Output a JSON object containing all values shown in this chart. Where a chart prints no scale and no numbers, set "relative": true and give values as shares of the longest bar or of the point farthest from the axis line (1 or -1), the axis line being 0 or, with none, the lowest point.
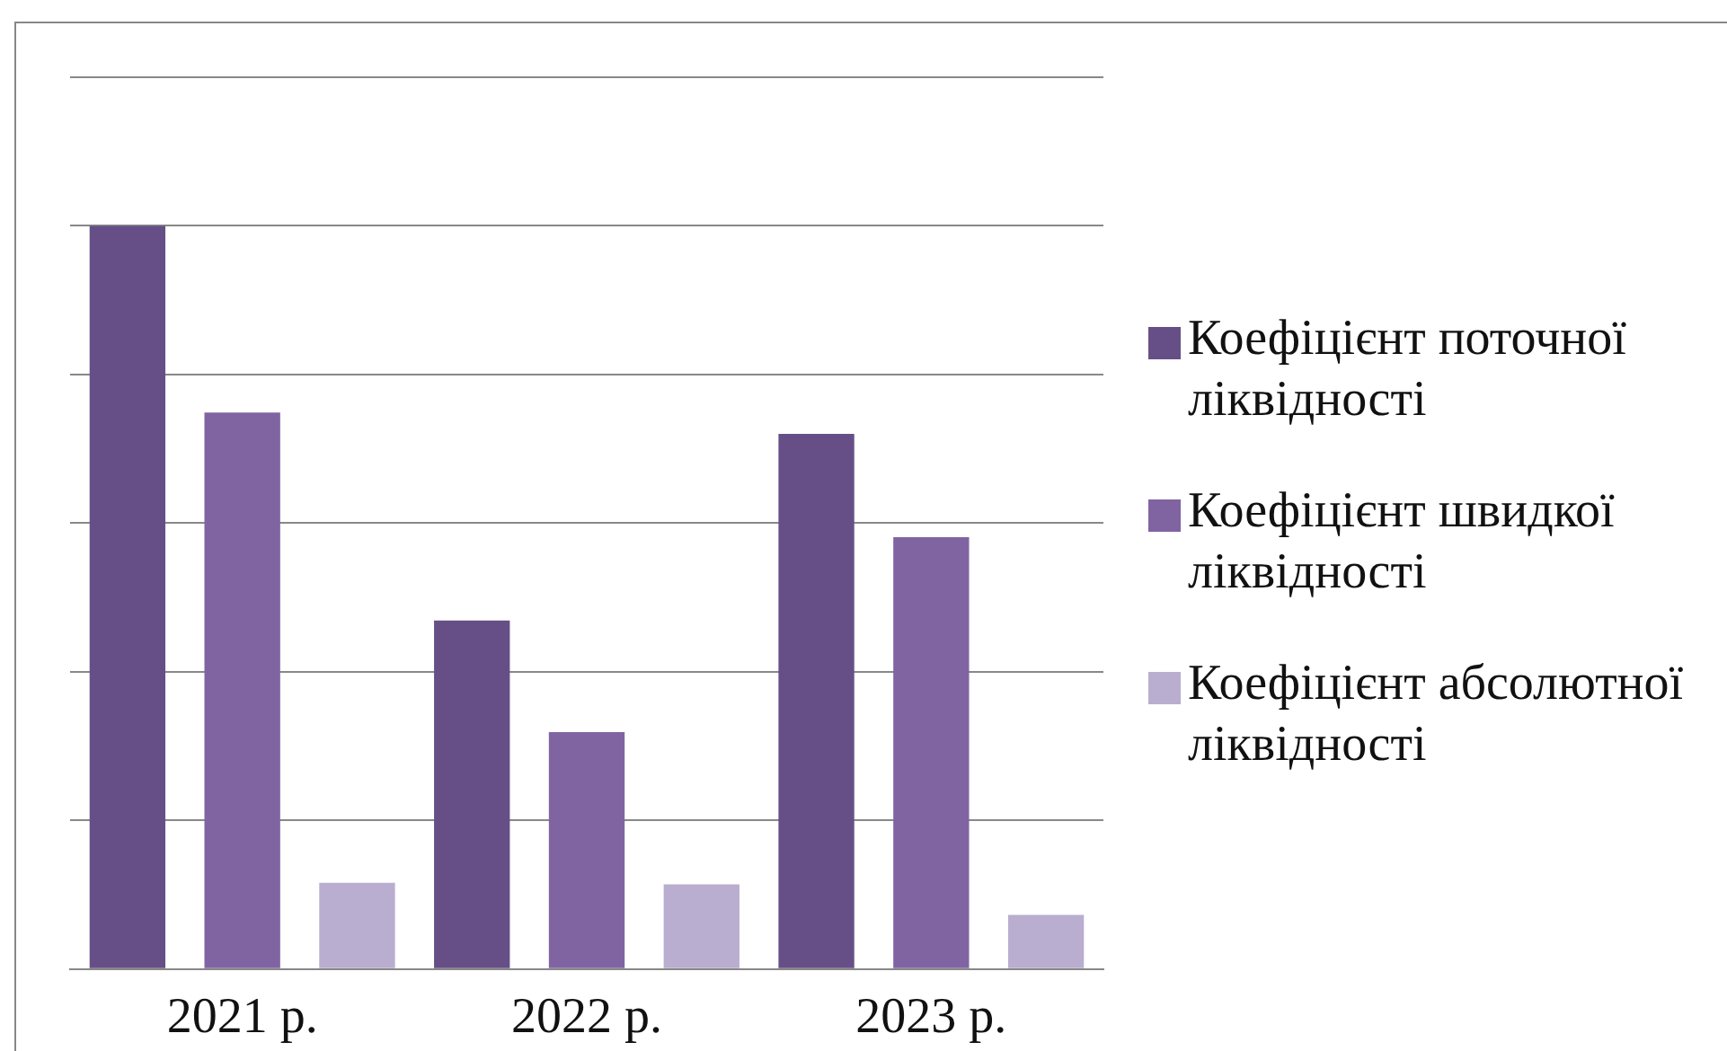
{
  "chart_data": {
    "type": "bar",
    "relative": true,
    "categories": [
      "2021 р.",
      "2022 р.",
      "2023 р."
    ],
    "series": [
      {
        "name": "Коефіцієнт поточної ліквідності",
        "color": "#664f86",
        "values": [
          1,
          0.469,
          0.72
        ]
      },
      {
        "name": "Коефіцієнт швидкої ліквідності",
        "color": "#8064a2",
        "values": [
          0.749,
          0.319,
          0.581
        ]
      },
      {
        "name": "Коефіцієнт абсолютної ліквідності",
        "color": "#b9aecf",
        "values": [
          0.116,
          0.114,
          0.073
        ]
      }
    ],
    "grid": "y",
    "legend": "right"
  }
}
